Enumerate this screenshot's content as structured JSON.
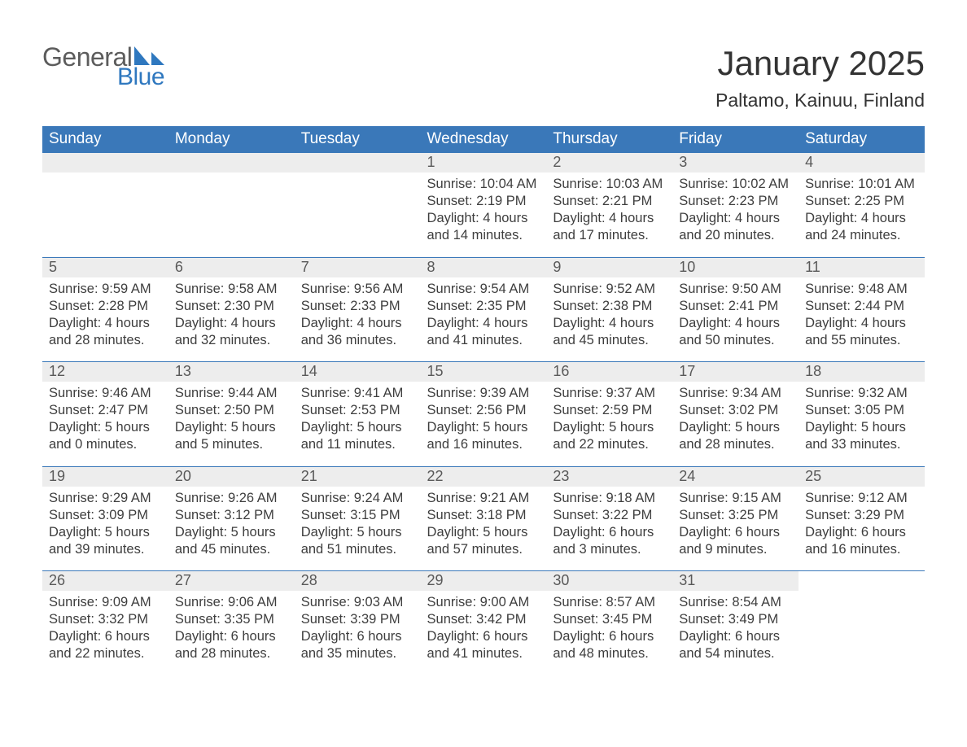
{
  "logo": {
    "word1": "General",
    "word2": "Blue",
    "color_gray": "#5c5c5c",
    "color_blue": "#2f78bf"
  },
  "title": "January 2025",
  "location": "Paltamo, Kainuu, Finland",
  "header_bg": "#3a78b9",
  "header_fg": "#ffffff",
  "daynum_bg": "#ededed",
  "text_color": "#3e3e3e",
  "font_family": "Arial",
  "dow": [
    "Sunday",
    "Monday",
    "Tuesday",
    "Wednesday",
    "Thursday",
    "Friday",
    "Saturday"
  ],
  "weeks": [
    [
      null,
      null,
      null,
      {
        "n": "1",
        "sr": "Sunrise: 10:04 AM",
        "ss": "Sunset: 2:19 PM",
        "d1": "Daylight: 4 hours",
        "d2": "and 14 minutes."
      },
      {
        "n": "2",
        "sr": "Sunrise: 10:03 AM",
        "ss": "Sunset: 2:21 PM",
        "d1": "Daylight: 4 hours",
        "d2": "and 17 minutes."
      },
      {
        "n": "3",
        "sr": "Sunrise: 10:02 AM",
        "ss": "Sunset: 2:23 PM",
        "d1": "Daylight: 4 hours",
        "d2": "and 20 minutes."
      },
      {
        "n": "4",
        "sr": "Sunrise: 10:01 AM",
        "ss": "Sunset: 2:25 PM",
        "d1": "Daylight: 4 hours",
        "d2": "and 24 minutes."
      }
    ],
    [
      {
        "n": "5",
        "sr": "Sunrise: 9:59 AM",
        "ss": "Sunset: 2:28 PM",
        "d1": "Daylight: 4 hours",
        "d2": "and 28 minutes."
      },
      {
        "n": "6",
        "sr": "Sunrise: 9:58 AM",
        "ss": "Sunset: 2:30 PM",
        "d1": "Daylight: 4 hours",
        "d2": "and 32 minutes."
      },
      {
        "n": "7",
        "sr": "Sunrise: 9:56 AM",
        "ss": "Sunset: 2:33 PM",
        "d1": "Daylight: 4 hours",
        "d2": "and 36 minutes."
      },
      {
        "n": "8",
        "sr": "Sunrise: 9:54 AM",
        "ss": "Sunset: 2:35 PM",
        "d1": "Daylight: 4 hours",
        "d2": "and 41 minutes."
      },
      {
        "n": "9",
        "sr": "Sunrise: 9:52 AM",
        "ss": "Sunset: 2:38 PM",
        "d1": "Daylight: 4 hours",
        "d2": "and 45 minutes."
      },
      {
        "n": "10",
        "sr": "Sunrise: 9:50 AM",
        "ss": "Sunset: 2:41 PM",
        "d1": "Daylight: 4 hours",
        "d2": "and 50 minutes."
      },
      {
        "n": "11",
        "sr": "Sunrise: 9:48 AM",
        "ss": "Sunset: 2:44 PM",
        "d1": "Daylight: 4 hours",
        "d2": "and 55 minutes."
      }
    ],
    [
      {
        "n": "12",
        "sr": "Sunrise: 9:46 AM",
        "ss": "Sunset: 2:47 PM",
        "d1": "Daylight: 5 hours",
        "d2": "and 0 minutes."
      },
      {
        "n": "13",
        "sr": "Sunrise: 9:44 AM",
        "ss": "Sunset: 2:50 PM",
        "d1": "Daylight: 5 hours",
        "d2": "and 5 minutes."
      },
      {
        "n": "14",
        "sr": "Sunrise: 9:41 AM",
        "ss": "Sunset: 2:53 PM",
        "d1": "Daylight: 5 hours",
        "d2": "and 11 minutes."
      },
      {
        "n": "15",
        "sr": "Sunrise: 9:39 AM",
        "ss": "Sunset: 2:56 PM",
        "d1": "Daylight: 5 hours",
        "d2": "and 16 minutes."
      },
      {
        "n": "16",
        "sr": "Sunrise: 9:37 AM",
        "ss": "Sunset: 2:59 PM",
        "d1": "Daylight: 5 hours",
        "d2": "and 22 minutes."
      },
      {
        "n": "17",
        "sr": "Sunrise: 9:34 AM",
        "ss": "Sunset: 3:02 PM",
        "d1": "Daylight: 5 hours",
        "d2": "and 28 minutes."
      },
      {
        "n": "18",
        "sr": "Sunrise: 9:32 AM",
        "ss": "Sunset: 3:05 PM",
        "d1": "Daylight: 5 hours",
        "d2": "and 33 minutes."
      }
    ],
    [
      {
        "n": "19",
        "sr": "Sunrise: 9:29 AM",
        "ss": "Sunset: 3:09 PM",
        "d1": "Daylight: 5 hours",
        "d2": "and 39 minutes."
      },
      {
        "n": "20",
        "sr": "Sunrise: 9:26 AM",
        "ss": "Sunset: 3:12 PM",
        "d1": "Daylight: 5 hours",
        "d2": "and 45 minutes."
      },
      {
        "n": "21",
        "sr": "Sunrise: 9:24 AM",
        "ss": "Sunset: 3:15 PM",
        "d1": "Daylight: 5 hours",
        "d2": "and 51 minutes."
      },
      {
        "n": "22",
        "sr": "Sunrise: 9:21 AM",
        "ss": "Sunset: 3:18 PM",
        "d1": "Daylight: 5 hours",
        "d2": "and 57 minutes."
      },
      {
        "n": "23",
        "sr": "Sunrise: 9:18 AM",
        "ss": "Sunset: 3:22 PM",
        "d1": "Daylight: 6 hours",
        "d2": "and 3 minutes."
      },
      {
        "n": "24",
        "sr": "Sunrise: 9:15 AM",
        "ss": "Sunset: 3:25 PM",
        "d1": "Daylight: 6 hours",
        "d2": "and 9 minutes."
      },
      {
        "n": "25",
        "sr": "Sunrise: 9:12 AM",
        "ss": "Sunset: 3:29 PM",
        "d1": "Daylight: 6 hours",
        "d2": "and 16 minutes."
      }
    ],
    [
      {
        "n": "26",
        "sr": "Sunrise: 9:09 AM",
        "ss": "Sunset: 3:32 PM",
        "d1": "Daylight: 6 hours",
        "d2": "and 22 minutes."
      },
      {
        "n": "27",
        "sr": "Sunrise: 9:06 AM",
        "ss": "Sunset: 3:35 PM",
        "d1": "Daylight: 6 hours",
        "d2": "and 28 minutes."
      },
      {
        "n": "28",
        "sr": "Sunrise: 9:03 AM",
        "ss": "Sunset: 3:39 PM",
        "d1": "Daylight: 6 hours",
        "d2": "and 35 minutes."
      },
      {
        "n": "29",
        "sr": "Sunrise: 9:00 AM",
        "ss": "Sunset: 3:42 PM",
        "d1": "Daylight: 6 hours",
        "d2": "and 41 minutes."
      },
      {
        "n": "30",
        "sr": "Sunrise: 8:57 AM",
        "ss": "Sunset: 3:45 PM",
        "d1": "Daylight: 6 hours",
        "d2": "and 48 minutes."
      },
      {
        "n": "31",
        "sr": "Sunrise: 8:54 AM",
        "ss": "Sunset: 3:49 PM",
        "d1": "Daylight: 6 hours",
        "d2": "and 54 minutes."
      },
      null
    ]
  ]
}
